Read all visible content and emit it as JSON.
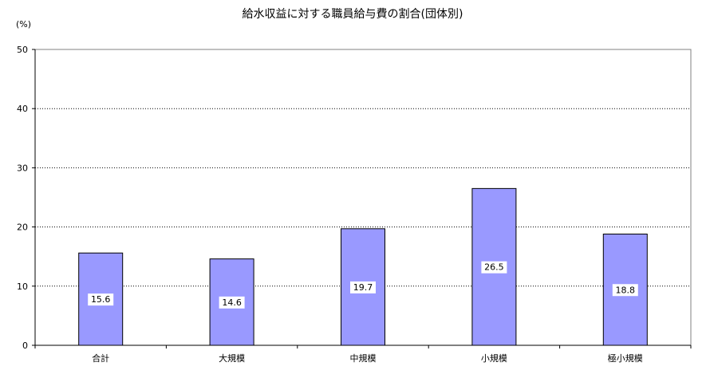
{
  "chart_data": {
    "type": "bar",
    "title": "給水収益に対する職員給与費の割合(団体別)",
    "ylabel": "(%)",
    "xlabel": "",
    "categories": [
      "合計",
      "大規模",
      "中規模",
      "小規模",
      "極小規模"
    ],
    "values": [
      15.6,
      14.6,
      19.7,
      26.5,
      18.8
    ],
    "ylim": [
      0,
      50
    ],
    "yticks": [
      0,
      10,
      20,
      30,
      40,
      50
    ],
    "grid": true,
    "grid_style": "dotted",
    "bar_color": "#9999ff",
    "data_labels": true
  }
}
